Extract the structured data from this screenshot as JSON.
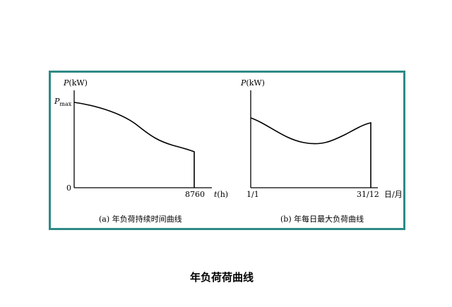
{
  "panel_a": {
    "y_axis_symbol": "P",
    "y_axis_unit": "(kW)",
    "y_max_symbol": "P",
    "y_max_subscript": "max",
    "origin_label": "0",
    "x_end_label": "8760",
    "x_axis_symbol": "t",
    "x_axis_unit": "(h)",
    "caption": "(a) 年负荷持续时间曲线"
  },
  "panel_b": {
    "y_axis_symbol": "P",
    "y_axis_unit": "(kW)",
    "x_start_label": "1/1",
    "x_end_label": "31/12",
    "x_axis_unit": "日/月",
    "caption": "(b) 年每日最大负荷曲线"
  },
  "figure_title": "年负荷荷曲线",
  "colors": {
    "frame": "#2e8a86",
    "ink": "#000000"
  }
}
